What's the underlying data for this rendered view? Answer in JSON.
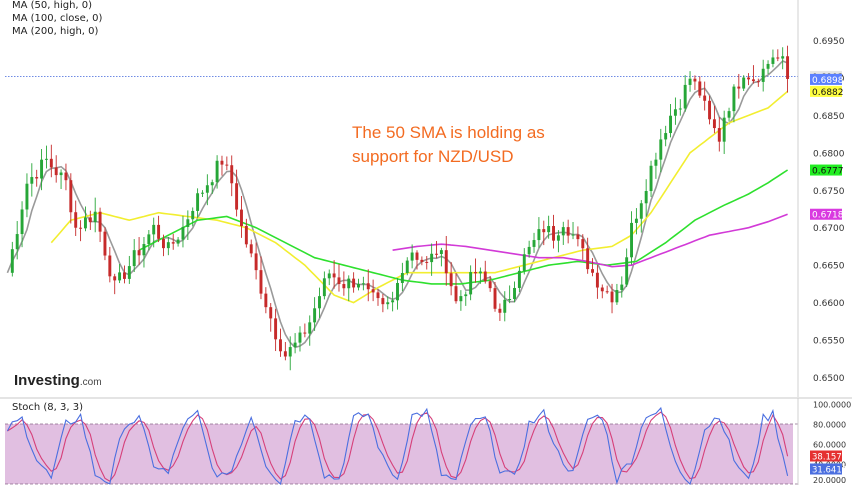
{
  "legend": {
    "ma50": "MA (50, high, 0)",
    "ma100": "MA (100, close, 0)",
    "ma200": "MA (200, high, 0)"
  },
  "annotation": {
    "line1": "The 50 SMA is holding as",
    "line2": "support for NZD/USD"
  },
  "brand": {
    "name": "Investing",
    "suffix": ".com"
  },
  "stoch": {
    "title": "Stoch (8, 3, 3)"
  },
  "colors": {
    "bull": "#26a637",
    "bear": "#c62a2a",
    "ma_fast": "#9a9a9a",
    "ma50": "#f2ee30",
    "ma100": "#2ee02e",
    "ma200": "#d23ad7",
    "stoch_k": "#4b6fe0",
    "stoch_d": "#d6407a",
    "stoch_bg": "#dcb4dc",
    "annotation": "#f36b21"
  },
  "chart_data": [
    {
      "type": "candlestick",
      "pair": "NZD/USD",
      "ylim": [
        0.649,
        0.698
      ],
      "price_ticks": [
        "0.6950",
        "0.6900",
        "0.6850",
        "0.6800",
        "0.6750",
        "0.6700",
        "0.6650",
        "0.6600",
        "0.6550",
        "0.6500"
      ],
      "current_price_line": 0.6902,
      "price_badges": [
        {
          "label": "0.6902",
          "value": 0.6902,
          "bg": "#e6e6e6",
          "fg": "#111111"
        },
        {
          "label": "0.6898",
          "value": 0.6898,
          "bg": "#5b80ff",
          "fg": "#ffffff"
        },
        {
          "label": "0.6882",
          "value": 0.6882,
          "bg": "#ffff40",
          "fg": "#111111"
        },
        {
          "label": "0.6777",
          "value": 0.6777,
          "bg": "#22ee22",
          "fg": "#111111"
        },
        {
          "label": "0.6718",
          "value": 0.6718,
          "bg": "#d93ae0",
          "fg": "#ffffff"
        }
      ],
      "close_path": [
        [
          0,
          0.664
        ],
        [
          4,
          0.676
        ],
        [
          8,
          0.679
        ],
        [
          12,
          0.676
        ],
        [
          14,
          0.67
        ],
        [
          18,
          0.672
        ],
        [
          22,
          0.662
        ],
        [
          26,
          0.666
        ],
        [
          30,
          0.67
        ],
        [
          33,
          0.667
        ],
        [
          36,
          0.67
        ],
        [
          38,
          0.673
        ],
        [
          41,
          0.676
        ],
        [
          44,
          0.679
        ],
        [
          46,
          0.676
        ],
        [
          48,
          0.67
        ],
        [
          51,
          0.664
        ],
        [
          53,
          0.66
        ],
        [
          55,
          0.656
        ],
        [
          57,
          0.653
        ],
        [
          60,
          0.655
        ],
        [
          62,
          0.6575
        ],
        [
          64,
          0.661
        ],
        [
          66,
          0.664
        ],
        [
          69,
          0.6625
        ],
        [
          72,
          0.663
        ],
        [
          74,
          0.661
        ],
        [
          77,
          0.659
        ],
        [
          79,
          0.66
        ],
        [
          81,
          0.665
        ],
        [
          83,
          0.667
        ],
        [
          86,
          0.665
        ],
        [
          88,
          0.667
        ],
        [
          90,
          0.665
        ],
        [
          92,
          0.66
        ],
        [
          94,
          0.662
        ],
        [
          96,
          0.664
        ],
        [
          99,
          0.662
        ],
        [
          101,
          0.658
        ],
        [
          103,
          0.661
        ],
        [
          105,
          0.665
        ],
        [
          108,
          0.668
        ],
        [
          110,
          0.67
        ],
        [
          112,
          0.669
        ],
        [
          114,
          0.671
        ],
        [
          116,
          0.669
        ],
        [
          118,
          0.6665
        ],
        [
          120,
          0.664
        ],
        [
          122,
          0.662
        ],
        [
          124,
          0.661
        ],
        [
          126,
          0.663
        ],
        [
          128,
          0.67
        ],
        [
          130,
          0.674
        ],
        [
          132,
          0.678
        ],
        [
          134,
          0.682
        ],
        [
          136,
          0.685
        ],
        [
          138,
          0.687
        ],
        [
          140,
          0.69
        ],
        [
          142,
          0.688
        ],
        [
          144,
          0.684
        ],
        [
          146,
          0.682
        ],
        [
          147,
          0.685
        ],
        [
          149,
          0.688
        ],
        [
          151,
          0.691
        ],
        [
          153,
          0.69
        ],
        [
          155,
          0.691
        ],
        [
          157,
          0.693
        ],
        [
          159,
          0.692
        ],
        [
          160,
          0.6898
        ]
      ],
      "series": [
        {
          "name": "MA (50, high, 0)",
          "color": "#f2ee30",
          "values": [
            [
              9,
              0.668
            ],
            [
              13,
              0.671
            ],
            [
              19,
              0.672
            ],
            [
              25,
              0.671
            ],
            [
              31,
              0.672
            ],
            [
              37,
              0.6715
            ],
            [
              43,
              0.671
            ],
            [
              49,
              0.67
            ],
            [
              55,
              0.668
            ],
            [
              61,
              0.665
            ],
            [
              67,
              0.661
            ],
            [
              71,
              0.66
            ],
            [
              76,
              0.662
            ],
            [
              82,
              0.664
            ],
            [
              88,
              0.664
            ],
            [
              94,
              0.664
            ],
            [
              100,
              0.664
            ],
            [
              106,
              0.665
            ],
            [
              112,
              0.666
            ],
            [
              118,
              0.667
            ],
            [
              124,
              0.6675
            ],
            [
              128,
              0.669
            ],
            [
              132,
              0.672
            ],
            [
              136,
              0.676
            ],
            [
              140,
              0.68
            ],
            [
              144,
              0.682
            ],
            [
              148,
              0.684
            ],
            [
              152,
              0.685
            ],
            [
              156,
              0.686
            ],
            [
              160,
              0.6882
            ]
          ]
        },
        {
          "name": "MA (100, close, 0)",
          "color": "#2ee02e",
          "values": [
            [
              27,
              0.667
            ],
            [
              33,
              0.669
            ],
            [
              39,
              0.671
            ],
            [
              45,
              0.6715
            ],
            [
              51,
              0.67
            ],
            [
              57,
              0.668
            ],
            [
              63,
              0.666
            ],
            [
              69,
              0.665
            ],
            [
              75,
              0.664
            ],
            [
              81,
              0.663
            ],
            [
              87,
              0.6625
            ],
            [
              93,
              0.6625
            ],
            [
              99,
              0.663
            ],
            [
              105,
              0.664
            ],
            [
              111,
              0.665
            ],
            [
              117,
              0.6655
            ],
            [
              123,
              0.665
            ],
            [
              129,
              0.6655
            ],
            [
              135,
              0.668
            ],
            [
              141,
              0.671
            ],
            [
              147,
              0.673
            ],
            [
              152,
              0.6745
            ],
            [
              156,
              0.676
            ],
            [
              160,
              0.6777
            ]
          ]
        },
        {
          "name": "MA (200, high, 0)",
          "color": "#d23ad7",
          "values": [
            [
              79,
              0.667
            ],
            [
              84,
              0.6675
            ],
            [
              89,
              0.6678
            ],
            [
              94,
              0.6675
            ],
            [
              99,
              0.667
            ],
            [
              104,
              0.6665
            ],
            [
              109,
              0.666
            ],
            [
              114,
              0.666
            ],
            [
              119,
              0.6655
            ],
            [
              124,
              0.6648
            ],
            [
              128,
              0.665
            ],
            [
              132,
              0.666
            ],
            [
              136,
              0.667
            ],
            [
              140,
              0.668
            ],
            [
              144,
              0.669
            ],
            [
              148,
              0.6695
            ],
            [
              152,
              0.67
            ],
            [
              156,
              0.6708
            ],
            [
              160,
              0.6718
            ]
          ]
        }
      ]
    },
    {
      "type": "line",
      "title": "Stoch (8, 3, 3)",
      "ylim": [
        20,
        100
      ],
      "y_ticks": [
        "100.0000",
        "80.0000",
        "60.0000",
        "40.0000",
        "20.0000"
      ],
      "band": [
        20,
        80
      ],
      "series": [
        {
          "name": "%K",
          "color": "#4b6fe0",
          "last_label": "31.6416"
        },
        {
          "name": "%D",
          "color": "#d6407a",
          "last_label": "38.1579"
        }
      ],
      "stoch_path": [
        [
          0,
          75
        ],
        [
          3,
          85
        ],
        [
          6,
          45
        ],
        [
          9,
          25
        ],
        [
          12,
          80
        ],
        [
          15,
          88
        ],
        [
          18,
          30
        ],
        [
          21,
          22
        ],
        [
          24,
          80
        ],
        [
          27,
          85
        ],
        [
          30,
          40
        ],
        [
          33,
          30
        ],
        [
          36,
          78
        ],
        [
          39,
          90
        ],
        [
          42,
          35
        ],
        [
          45,
          25
        ],
        [
          48,
          60
        ],
        [
          50,
          90
        ],
        [
          53,
          40
        ],
        [
          56,
          22
        ],
        [
          59,
          85
        ],
        [
          62,
          88
        ],
        [
          65,
          30
        ],
        [
          68,
          25
        ],
        [
          71,
          85
        ],
        [
          74,
          90
        ],
        [
          77,
          45
        ],
        [
          80,
          25
        ],
        [
          83,
          88
        ],
        [
          86,
          92
        ],
        [
          89,
          30
        ],
        [
          92,
          22
        ],
        [
          95,
          80
        ],
        [
          98,
          85
        ],
        [
          101,
          35
        ],
        [
          104,
          25
        ],
        [
          107,
          80
        ],
        [
          110,
          90
        ],
        [
          113,
          50
        ],
        [
          116,
          30
        ],
        [
          119,
          85
        ],
        [
          122,
          88
        ],
        [
          125,
          25
        ],
        [
          128,
          45
        ],
        [
          131,
          90
        ],
        [
          134,
          92
        ],
        [
          137,
          40
        ],
        [
          140,
          20
        ],
        [
          143,
          75
        ],
        [
          146,
          90
        ],
        [
          149,
          45
        ],
        [
          152,
          22
        ],
        [
          155,
          85
        ],
        [
          157,
          90
        ],
        [
          159,
          50
        ],
        [
          160,
          32
        ]
      ]
    }
  ]
}
